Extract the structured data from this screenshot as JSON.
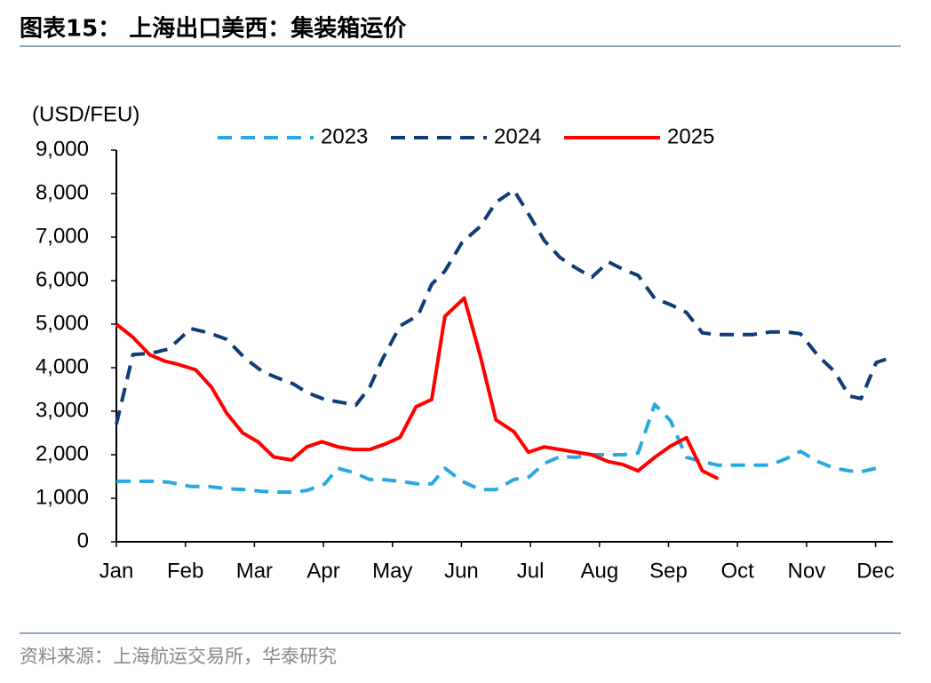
{
  "chart_data": {
    "type": "line",
    "title": "图表15：  上海出口美西：集装箱运价",
    "y_label": "(USD/FEU)",
    "source": "资料来源：上海航运交易所，华泰研究",
    "xlim": [
      0,
      11.25
    ],
    "xticks": [
      {
        "value": 0,
        "label": "Jan"
      },
      {
        "value": 1,
        "label": "Feb"
      },
      {
        "value": 2,
        "label": "Mar"
      },
      {
        "value": 3,
        "label": "Apr"
      },
      {
        "value": 4,
        "label": "May"
      },
      {
        "value": 5,
        "label": "Jun"
      },
      {
        "value": 6,
        "label": "Jul"
      },
      {
        "value": 7,
        "label": "Aug"
      },
      {
        "value": 8,
        "label": "Sep"
      },
      {
        "value": 9,
        "label": "Oct"
      },
      {
        "value": 10,
        "label": "Nov"
      },
      {
        "value": 11,
        "label": "Dec"
      }
    ],
    "ylim": [
      0,
      9000
    ],
    "yticks": [
      0,
      {
        "value": 1000,
        "label": "1,000"
      },
      {
        "value": 2000,
        "label": "2,000"
      },
      {
        "value": 3000,
        "label": "3,000"
      },
      {
        "value": 4000,
        "label": "4,000"
      },
      {
        "value": 5000,
        "label": "5,000"
      },
      {
        "value": 6000,
        "label": "6,000"
      },
      {
        "value": 7000,
        "label": "7,000"
      },
      {
        "value": 8000,
        "label": "8,000"
      },
      {
        "value": 9000,
        "label": "9,000"
      }
    ],
    "series": [
      {
        "name": "2023",
        "color": "#29a9e0",
        "line_style": "dashed",
        "x": [
          0,
          0.24,
          0.5,
          0.76,
          1.08,
          1.34,
          1.6,
          1.86,
          2.11,
          2.31,
          2.56,
          2.76,
          3.02,
          3.21,
          3.44,
          3.67,
          3.85,
          4.11,
          4.37,
          4.57,
          4.76,
          5.01,
          5.27,
          5.5,
          5.76,
          5.98,
          6.2,
          6.43,
          6.66,
          6.89,
          7.13,
          7.33,
          7.56,
          7.8,
          8.03,
          8.26,
          8.49,
          8.72,
          8.96,
          9.21,
          9.47,
          9.72,
          9.91,
          10.17,
          10.4,
          10.62,
          10.79,
          11.01,
          11.13
        ],
        "values": [
          1390,
          1390,
          1390,
          1370,
          1270,
          1270,
          1220,
          1200,
          1160,
          1140,
          1140,
          1180,
          1330,
          1690,
          1590,
          1430,
          1430,
          1390,
          1330,
          1330,
          1690,
          1390,
          1200,
          1200,
          1430,
          1490,
          1800,
          1960,
          1940,
          2000,
          2000,
          2000,
          2040,
          3160,
          2780,
          1940,
          1840,
          1760,
          1760,
          1760,
          1760,
          1920,
          2080,
          1840,
          1690,
          1630,
          1610,
          1690,
          1710
        ]
      },
      {
        "name": "2024",
        "color": "#0f3b76",
        "line_style": "dashed",
        "x": [
          0,
          0.24,
          0.5,
          0.76,
          1.08,
          1.34,
          1.6,
          1.86,
          2.11,
          2.31,
          2.56,
          2.76,
          3.02,
          3.27,
          3.47,
          3.67,
          3.85,
          4.11,
          4.37,
          4.57,
          4.76,
          5.01,
          5.27,
          5.5,
          5.76,
          5.98,
          6.2,
          6.43,
          6.66,
          6.89,
          7.13,
          7.33,
          7.56,
          7.8,
          8.03,
          8.26,
          8.49,
          8.72,
          8.96,
          9.21,
          9.47,
          9.72,
          9.91,
          10.17,
          10.4,
          10.62,
          10.79,
          11.01,
          11.24
        ],
        "values": [
          2700,
          4300,
          4330,
          4430,
          4900,
          4800,
          4650,
          4220,
          3920,
          3780,
          3630,
          3430,
          3270,
          3200,
          3140,
          3550,
          4180,
          4960,
          5200,
          5920,
          6220,
          6880,
          7240,
          7800,
          8080,
          7510,
          6920,
          6530,
          6290,
          6080,
          6430,
          6270,
          6120,
          5590,
          5450,
          5270,
          4800,
          4760,
          4760,
          4760,
          4820,
          4820,
          4780,
          4270,
          3920,
          3350,
          3290,
          4120,
          4240
        ]
      },
      {
        "name": "2025",
        "color": "#ff0000",
        "line_style": "solid",
        "x": [
          0,
          0.24,
          0.48,
          0.7,
          0.89,
          1.15,
          1.38,
          1.6,
          1.83,
          2.05,
          2.28,
          2.54,
          2.76,
          2.98,
          3.21,
          3.44,
          3.67,
          3.9,
          4.11,
          4.34,
          4.57,
          4.76,
          5.04,
          5.27,
          5.5,
          5.76,
          5.97,
          6.2,
          6.43,
          6.66,
          6.89,
          7.13,
          7.33,
          7.56,
          7.8,
          8.03,
          8.26,
          8.49,
          8.72
        ],
        "values": [
          5000,
          4700,
          4300,
          4150,
          4080,
          3950,
          3550,
          2950,
          2500,
          2300,
          1950,
          1880,
          2180,
          2300,
          2180,
          2120,
          2120,
          2250,
          2400,
          3100,
          3270,
          5180,
          5600,
          4290,
          2800,
          2530,
          2060,
          2180,
          2120,
          2060,
          2000,
          1840,
          1780,
          1630,
          1940,
          2200,
          2390,
          1630,
          1450
        ]
      }
    ]
  }
}
